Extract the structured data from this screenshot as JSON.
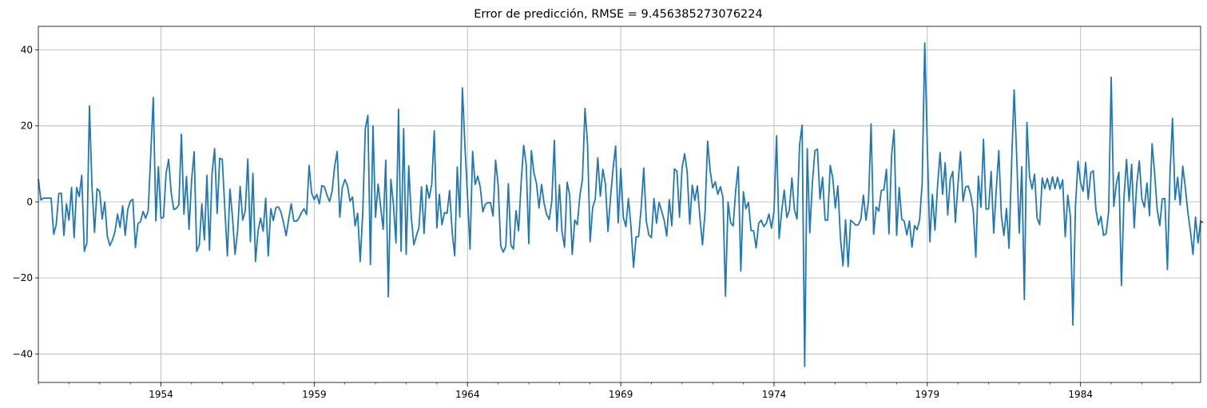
{
  "chart_data": {
    "type": "line",
    "title": "Error de predicción, RMSE = 9.456385273076224",
    "xlabel": "",
    "ylabel": "",
    "x_start": "1950-01",
    "x_end": "1987-12",
    "x_frequency": "monthly",
    "xlim": [
      "1950-01",
      "1987-12"
    ],
    "ylim": [
      -47.5,
      46.2
    ],
    "x_ticks": [
      {
        "label": "1954",
        "value": "1954-01"
      },
      {
        "label": "1959",
        "value": "1959-01"
      },
      {
        "label": "1964",
        "value": "1964-01"
      },
      {
        "label": "1969",
        "value": "1969-01"
      },
      {
        "label": "1974",
        "value": "1974-01"
      },
      {
        "label": "1979",
        "value": "1979-01"
      },
      {
        "label": "1984",
        "value": "1984-01"
      }
    ],
    "y_ticks": [
      {
        "label": "40",
        "value": 40
      },
      {
        "label": "20",
        "value": 20
      },
      {
        "label": "0",
        "value": 0
      },
      {
        "label": "−20",
        "value": -20
      },
      {
        "label": "−40",
        "value": -40
      }
    ],
    "grid": true,
    "series": [
      {
        "color": "#1f77b4",
        "values": [
          6,
          0.5,
          1,
          1,
          1,
          1,
          -8.5,
          -6,
          2.2,
          2.3,
          -8.8,
          -0.5,
          -4.8,
          3.8,
          -9.4,
          3.8,
          1.4,
          7,
          -13,
          -10.8,
          25.3,
          4,
          -8,
          3.5,
          2.8,
          -4.5,
          0,
          -9,
          -11.5,
          -10,
          -7.8,
          -3.2,
          -6.7,
          -1,
          -8.8,
          -2,
          0.2,
          0.7,
          -12,
          -5.7,
          -5.2,
          -2.5,
          -4.3,
          -2.3,
          12.5,
          27.5,
          -5,
          9.3,
          -4.3,
          -4,
          7.5,
          11.2,
          2.5,
          -2,
          -1.7,
          -0.8,
          17.8,
          -3.2,
          6.7,
          -7.2,
          5.8,
          13.2,
          -13,
          -11.3,
          -0.5,
          -10,
          7,
          -12.7,
          7.5,
          14,
          -3,
          11.5,
          11.2,
          -1.8,
          -14.2,
          3.4,
          -4,
          -13.8,
          -7.6,
          4.1,
          -4.8,
          -2.4,
          11.3,
          -10.5,
          7.5,
          -15.7,
          -7.7,
          -4.3,
          -7.7,
          1,
          -14.2,
          -1.8,
          -4.9,
          -1.5,
          -1.3,
          -2.7,
          -5.5,
          -8.9,
          -4.5,
          -0.5,
          -5,
          -5.1,
          -4.3,
          -2.8,
          -1.8,
          -3.3,
          9.6,
          2.3,
          0.6,
          2,
          -0.5,
          4.3,
          4,
          1.8,
          0.1,
          2.8,
          9.4,
          13.3,
          -4,
          3.8,
          5.9,
          4.3,
          0.2,
          1.3,
          -6.3,
          -3,
          -15.7,
          -2.8,
          19.3,
          22.8,
          -16.5,
          20,
          -4,
          4.7,
          -1.3,
          -7.2,
          11,
          -25,
          6,
          -0.6,
          -10.8,
          24.4,
          -13,
          19.3,
          -13.8,
          9.5,
          -4,
          -11.3,
          -8.9,
          -6.7,
          4,
          -8.3,
          4.4,
          1,
          4.6,
          18.7,
          -6.8,
          2,
          -6,
          -2.8,
          -3,
          3,
          -7.9,
          -14.2,
          9.2,
          -4,
          30,
          14.8,
          1.8,
          -12.4,
          13.3,
          4.6,
          6.8,
          3.9,
          -2.6,
          -0.6,
          -0.2,
          -0.2,
          -3.7,
          11,
          4.5,
          -11.5,
          -13.2,
          -11.7,
          4.8,
          -11.5,
          -12.4,
          -2.3,
          -7.6,
          5.1,
          14.9,
          9.7,
          -11,
          13.5,
          7.7,
          4.9,
          -1.6,
          4.6,
          -0.4,
          -3.3,
          -4.6,
          0.2,
          16.2,
          -7.7,
          4.5,
          -7.9,
          -11.9,
          5.2,
          1.8,
          -13.8,
          -4.8,
          -6,
          1.7,
          5.9,
          24.6,
          15.2,
          -10.5,
          -1.5,
          0.7,
          11.6,
          1.5,
          8.6,
          4.7,
          -7.8,
          1.2,
          8.9,
          14.7,
          -5.5,
          8.8,
          -4,
          -6.5,
          0.9,
          -6.5,
          -17.2,
          -9.2,
          -9.1,
          -1.5,
          8.9,
          -5.1,
          -8.7,
          -9.4,
          0.9,
          -5.6,
          -0.1,
          -2.4,
          -4.8,
          -9,
          0.6,
          -6.3,
          8.7,
          8.1,
          -4,
          9,
          12.7,
          7.9,
          -5.8,
          4.4,
          0.4,
          4.2,
          -4.2,
          -11.3,
          -2.6,
          16,
          8.2,
          3.7,
          5.3,
          2,
          4,
          1.2,
          -24.8,
          0,
          -5.5,
          -6.3,
          3,
          9.3,
          -18.2,
          2.7,
          -1.8,
          -0.1,
          -7.5,
          -7.6,
          -12.1,
          -5.6,
          -4.8,
          -6.5,
          -5.6,
          -3.2,
          -6.9,
          -2.4,
          17.4,
          -9.6,
          -2.5,
          3.1,
          -4.1,
          -2.2,
          6.3,
          -2.1,
          -4.5,
          15,
          20.2,
          -43.3,
          14,
          -8.1,
          4.8,
          13.5,
          13.9,
          0.8,
          6.5,
          -4.8,
          -4.8,
          9.6,
          6.3,
          -1.6,
          4.2,
          -9.5,
          -16.8,
          -4.7,
          -17,
          -4.8,
          -5.4,
          -6.1,
          -6,
          -4.5,
          1.8,
          -4.8,
          0.4,
          20.5,
          -8.5,
          -1.3,
          -2.4,
          3,
          3.2,
          8.6,
          -8.4,
          12,
          19,
          -8.8,
          3.8,
          -4.5,
          -5.1,
          -8.7,
          -5,
          -11.9,
          -6.2,
          -7.3,
          -4.7,
          5.1,
          41.8,
          15,
          -10.5,
          2,
          -7.4,
          4,
          13,
          2,
          10.3,
          -3.4,
          6,
          8,
          -5.4,
          4.4,
          13.2,
          0.2,
          3.9,
          4.2,
          1.9,
          -2.4,
          -14.5,
          6.8,
          -1.4,
          16.5,
          -1.9,
          -1.8,
          8,
          -8.2,
          3.3,
          13.5,
          -3.7,
          -8.8,
          -1.7,
          -12.2,
          10.2,
          29.5,
          12,
          -8.2,
          9.3,
          -25.7,
          20.9,
          6.8,
          3.4,
          7.3,
          -4.3,
          -6,
          6.3,
          3.5,
          6.2,
          3.2,
          6.6,
          3.5,
          6.5,
          3.4,
          5.8,
          -9.2,
          1.8,
          -3.7,
          -32.4,
          -1.3,
          10.7,
          5.1,
          2.8,
          10.4,
          0.7,
          7.7,
          8.2,
          -2,
          -6,
          -3.8,
          -8.8,
          -8.4,
          -2.5,
          32.8,
          -1.2,
          4.7,
          7.8,
          -22,
          1,
          11.2,
          0.2,
          9.9,
          -6.8,
          4.7,
          10.8,
          0.8,
          -1.4,
          5,
          -3.6,
          15.3,
          7.5,
          -2,
          -6.2,
          0.8,
          0.9,
          -17.8,
          7.1,
          22,
          0.6,
          6.5,
          -0.8,
          9.4,
          3.9,
          -2.7,
          -7.6,
          -13.8,
          -4,
          -10.8,
          -5,
          -5.5
        ]
      }
    ]
  }
}
